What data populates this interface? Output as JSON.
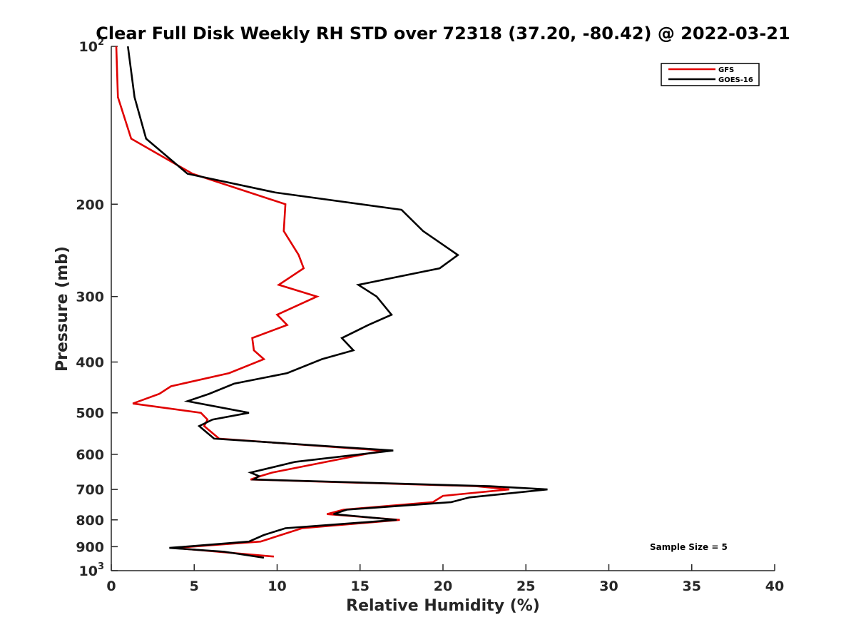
{
  "chart_data": {
    "type": "line",
    "title": "Clear Full Disk Weekly RH STD over 72318 (37.20, -80.42) @ 2022-03-21",
    "xlabel": "Relative Humidity (%)",
    "ylabel": "Pressure (mb)",
    "xlim": [
      0,
      40
    ],
    "ylim": [
      100,
      1000
    ],
    "y_scale": "log",
    "y_reversed": true,
    "x_ticks": [
      0,
      5,
      10,
      15,
      20,
      25,
      30,
      35,
      40
    ],
    "x_tick_labels": [
      "0",
      "5",
      "10",
      "15",
      "20",
      "25",
      "30",
      "35",
      "40"
    ],
    "y_ticks": [
      100,
      200,
      300,
      400,
      500,
      600,
      700,
      800,
      900,
      1000
    ],
    "y_tick_labels": [
      {
        "base": "10",
        "exp": "2"
      },
      {
        "base": "200",
        "exp": ""
      },
      {
        "base": "300",
        "exp": ""
      },
      {
        "base": "400",
        "exp": ""
      },
      {
        "base": "500",
        "exp": ""
      },
      {
        "base": "600",
        "exp": ""
      },
      {
        "base": "700",
        "exp": ""
      },
      {
        "base": "800",
        "exp": ""
      },
      {
        "base": "900",
        "exp": ""
      },
      {
        "base": "10",
        "exp": "3"
      }
    ],
    "grid": false,
    "legend_position": "top-right",
    "annotation": "Sample Size = 5",
    "series": [
      {
        "name": "GFS",
        "color": "#e00000",
        "points": [
          [
            0.3,
            100
          ],
          [
            0.4,
            125
          ],
          [
            1.2,
            150
          ],
          [
            4.9,
            175
          ],
          [
            10.5,
            200
          ],
          [
            10.4,
            225
          ],
          [
            11.3,
            250
          ],
          [
            11.6,
            265
          ],
          [
            10.1,
            285
          ],
          [
            12.4,
            300
          ],
          [
            10.0,
            325
          ],
          [
            10.6,
            340
          ],
          [
            8.5,
            360
          ],
          [
            8.6,
            380
          ],
          [
            9.2,
            395
          ],
          [
            7.1,
            420
          ],
          [
            3.6,
            445
          ],
          [
            2.9,
            460
          ],
          [
            1.3,
            480
          ],
          [
            5.4,
            500
          ],
          [
            5.8,
            515
          ],
          [
            5.6,
            530
          ],
          [
            6.5,
            560
          ],
          [
            16.4,
            590
          ],
          [
            9.7,
            650
          ],
          [
            9.0,
            660
          ],
          [
            8.4,
            670
          ],
          [
            22.0,
            690
          ],
          [
            24.0,
            700
          ],
          [
            20.0,
            720
          ],
          [
            19.4,
            740
          ],
          [
            14.0,
            765
          ],
          [
            13.0,
            780
          ],
          [
            17.4,
            800
          ],
          [
            11.5,
            830
          ],
          [
            9.0,
            880
          ],
          [
            3.8,
            905
          ],
          [
            9.8,
            940
          ]
        ]
      },
      {
        "name": "GOES-16",
        "color": "#000000",
        "points": [
          [
            1.0,
            100
          ],
          [
            1.4,
            125
          ],
          [
            2.1,
            150
          ],
          [
            4.6,
            175
          ],
          [
            9.9,
            190
          ],
          [
            17.5,
            205
          ],
          [
            18.8,
            225
          ],
          [
            20.9,
            250
          ],
          [
            19.8,
            265
          ],
          [
            14.9,
            285
          ],
          [
            16.0,
            300
          ],
          [
            16.9,
            325
          ],
          [
            15.5,
            340
          ],
          [
            13.9,
            360
          ],
          [
            14.6,
            380
          ],
          [
            12.7,
            395
          ],
          [
            10.6,
            420
          ],
          [
            7.4,
            440
          ],
          [
            5.9,
            460
          ],
          [
            4.6,
            475
          ],
          [
            8.3,
            500
          ],
          [
            6.1,
            515
          ],
          [
            5.3,
            530
          ],
          [
            6.2,
            560
          ],
          [
            17.0,
            590
          ],
          [
            11.1,
            620
          ],
          [
            8.4,
            650
          ],
          [
            8.9,
            660
          ],
          [
            8.6,
            670
          ],
          [
            22.8,
            690
          ],
          [
            26.3,
            700
          ],
          [
            21.6,
            725
          ],
          [
            20.5,
            740
          ],
          [
            14.2,
            765
          ],
          [
            13.4,
            780
          ],
          [
            17.2,
            800
          ],
          [
            10.5,
            830
          ],
          [
            9.2,
            855
          ],
          [
            8.3,
            880
          ],
          [
            3.5,
            905
          ],
          [
            6.8,
            920
          ],
          [
            9.2,
            945
          ]
        ]
      }
    ]
  }
}
